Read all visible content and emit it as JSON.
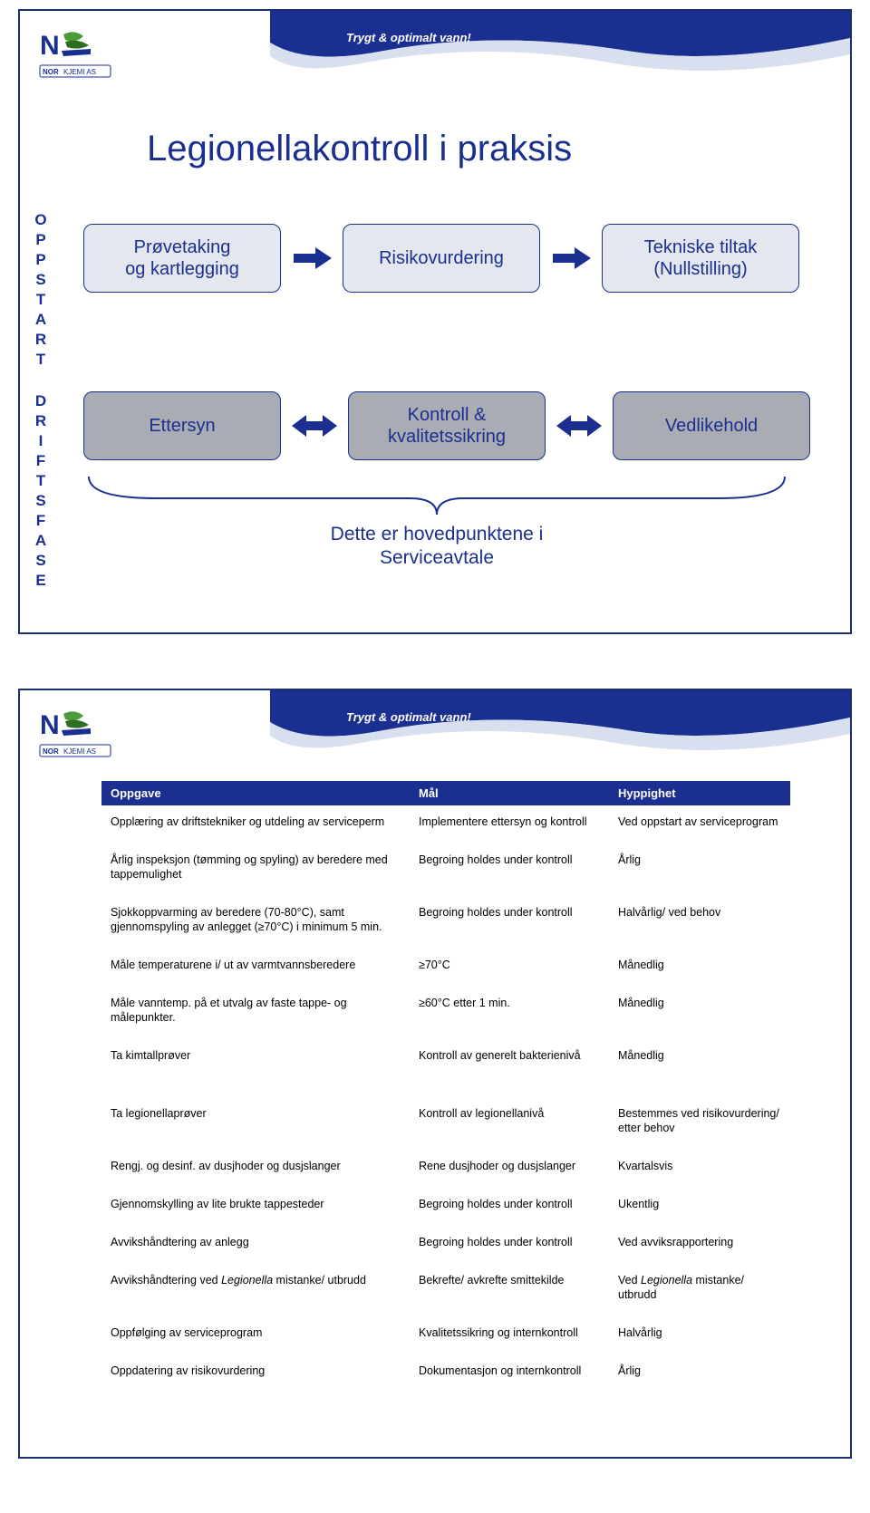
{
  "tagline": "Trygt & optimalt vann!",
  "colors": {
    "brand_dark": "#1a2f8f",
    "brand_border": "#1a2f6b",
    "box_light": "#e4e7ee",
    "box_gray": "#a9adb3",
    "curve_mid": "#6b82b8",
    "curve_light": "#d8e0ef",
    "leaf_green": "#4a9b3a",
    "leaf_dark": "#2e6e22"
  },
  "slide1": {
    "title": "Legionellakontroll i praksis",
    "vlabel1": "OPPSTART",
    "vlabel2": "DRIFTSFASE",
    "row1": {
      "boxes": [
        "Prøvetaking og kartlegging",
        "Risikovurdering",
        "Tekniske tiltak (Nullstilling)"
      ],
      "arrow_type": "single",
      "box_bg": "#e4e7ee"
    },
    "row2": {
      "boxes": [
        "Ettersyn",
        "Kontroll & kvalitetssikring",
        "Vedlikehold"
      ],
      "arrow_type": "double",
      "box_bg": "#a9adb3"
    },
    "bracket_caption_l1": "Dette er hovedpunktene i",
    "bracket_caption_l2": "Serviceavtale"
  },
  "slide2": {
    "headers": [
      "Oppgave",
      "Mål",
      "Hyppighet"
    ],
    "rows_group1": [
      {
        "c1": "Opplæring av driftstekniker og utdeling av serviceperm",
        "c2": "Implementere ettersyn og kontroll",
        "c3": "Ved oppstart av serviceprogram"
      },
      {
        "c1": "Årlig inspeksjon (tømming og spyling) av beredere med tappemulighet",
        "c2": "Begroing holdes under kontroll",
        "c3": "Årlig"
      },
      {
        "c1": "Sjokkoppvarming av beredere (70-80°C), samt gjennomspyling av anlegget (≥70°C) i minimum 5 min.",
        "c2": "Begroing holdes under kontroll",
        "c3": "Halvårlig/ ved behov"
      },
      {
        "c1": "Måle temperaturene i/ ut av varmtvannsberedere",
        "c2": "≥70°C",
        "c3": "Månedlig"
      },
      {
        "c1": "Måle vanntemp. på et utvalg av faste tappe- og målepunkter.",
        "c2": "≥60°C etter 1 min.",
        "c3": "Månedlig"
      },
      {
        "c1": "Ta kimtallprøver",
        "c2": "Kontroll av generelt bakterienivå",
        "c3": "Månedlig"
      }
    ],
    "rows_group2": [
      {
        "c1": "Ta legionellaprøver",
        "c2": "Kontroll av legionellanivå",
        "c3": "Bestemmes ved risikovurdering/ etter behov"
      },
      {
        "c1": "Rengj. og desinf. av dusjhoder og dusjslanger",
        "c2": "Rene dusjhoder og dusjslanger",
        "c3": "Kvartalsvis"
      },
      {
        "c1": "Gjennomskylling av lite brukte tappesteder",
        "c2": "Begroing holdes under kontroll",
        "c3": "Ukentlig"
      },
      {
        "c1": "Avvikshåndtering av anlegg",
        "c2": "Begroing holdes under kontroll",
        "c3": "Ved avviksrapportering"
      },
      {
        "c1_html": "Avvikshåndtering ved <span class='italic'>Legionella</span> mistanke/ utbrudd",
        "c2": "Bekrefte/ avkrefte smittekilde",
        "c3_html": "Ved <span class='italic'>Legionella</span> mistanke/ utbrudd"
      },
      {
        "c1": "Oppfølging av serviceprogram",
        "c2": "Kvalitetssikring og internkontroll",
        "c3": "Halvårlig"
      },
      {
        "c1": "Oppdatering av risikovurdering",
        "c2": "Dokumentasjon og internkontroll",
        "c3": "Årlig"
      }
    ]
  }
}
